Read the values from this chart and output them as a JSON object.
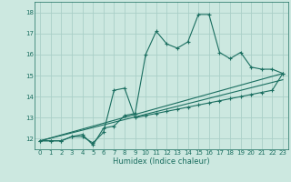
{
  "title": "",
  "xlabel": "Humidex (Indice chaleur)",
  "background_color": "#cce8e0",
  "grid_color": "#aacfc8",
  "line_color": "#1a6e60",
  "xlim": [
    -0.5,
    23.5
  ],
  "ylim": [
    11.5,
    18.5
  ],
  "yticks": [
    12,
    13,
    14,
    15,
    16,
    17,
    18
  ],
  "xticks": [
    0,
    1,
    2,
    3,
    4,
    5,
    6,
    7,
    8,
    9,
    10,
    11,
    12,
    13,
    14,
    15,
    16,
    17,
    18,
    19,
    20,
    21,
    22,
    23
  ],
  "line1_x": [
    0,
    1,
    2,
    3,
    4,
    5,
    6,
    7,
    8,
    9,
    10,
    11,
    12,
    13,
    14,
    15,
    16,
    17,
    18,
    19,
    20,
    21,
    22,
    23
  ],
  "line1_y": [
    11.9,
    11.9,
    11.9,
    12.1,
    12.2,
    11.7,
    12.5,
    12.6,
    13.1,
    13.2,
    16.0,
    17.1,
    16.5,
    16.3,
    16.6,
    17.9,
    17.9,
    16.1,
    15.8,
    16.1,
    15.4,
    15.3,
    15.3,
    15.1
  ],
  "line2_x": [
    0,
    1,
    2,
    3,
    4,
    5,
    6,
    7,
    8,
    9,
    10,
    11,
    12,
    13,
    14,
    15,
    16,
    17,
    18,
    19,
    20,
    21,
    22,
    23
  ],
  "line2_y": [
    11.9,
    11.9,
    11.9,
    12.1,
    12.1,
    11.8,
    12.3,
    14.3,
    14.4,
    13.0,
    13.1,
    13.2,
    13.3,
    13.4,
    13.5,
    13.6,
    13.7,
    13.8,
    13.9,
    14.0,
    14.1,
    14.2,
    14.3,
    15.1
  ],
  "line3_x": [
    0,
    23
  ],
  "line3_y": [
    11.9,
    15.1
  ],
  "line4_x": [
    0,
    23
  ],
  "line4_y": [
    11.9,
    14.8
  ]
}
